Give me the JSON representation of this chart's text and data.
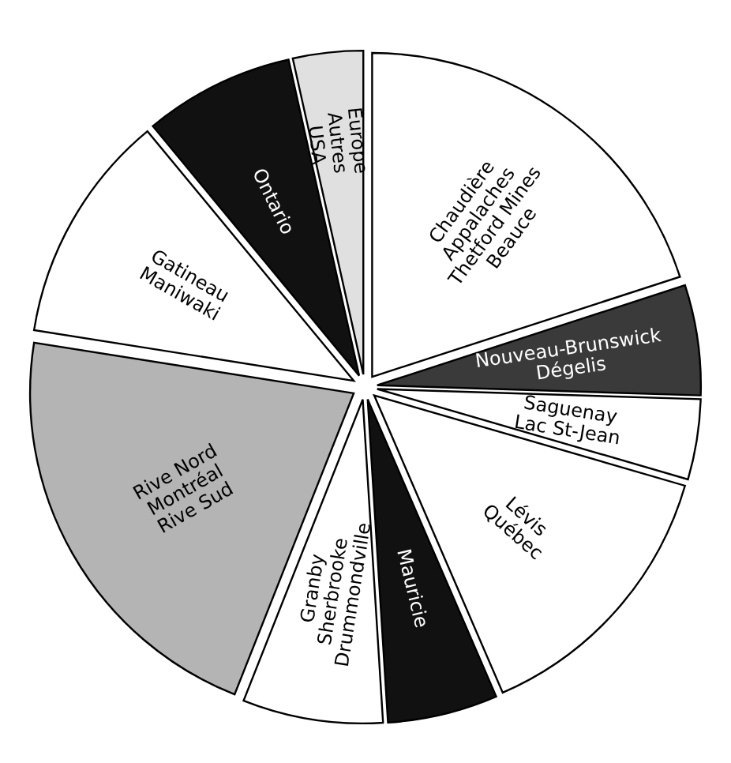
{
  "chart_data": {
    "type": "pie",
    "categories": [
      "Chaudière\nAppalaches\nThetford Mines\nBeauce",
      "Nouveau-Brunswick\nDégelis",
      "Saguenay\nLac St-Jean",
      "Lévis\nQuébec",
      "Mauricie",
      "Granby\nSherbrooke\nDrummondville",
      "Rive Nord\nMontréal\nRive Sud",
      "Gatineau\nManiwaki",
      "Ontario",
      "Europe\nAutres\nUSA"
    ],
    "values": [
      20,
      5.5,
      4,
      14,
      5.5,
      7,
      21.5,
      11.5,
      7.5,
      3.5
    ],
    "colors": [
      "#ffffff",
      "#3a3a3a",
      "#ffffff",
      "#ffffff",
      "#111111",
      "#ffffff",
      "#b4b4b4",
      "#ffffff",
      "#111111",
      "#e0e0e0"
    ]
  }
}
